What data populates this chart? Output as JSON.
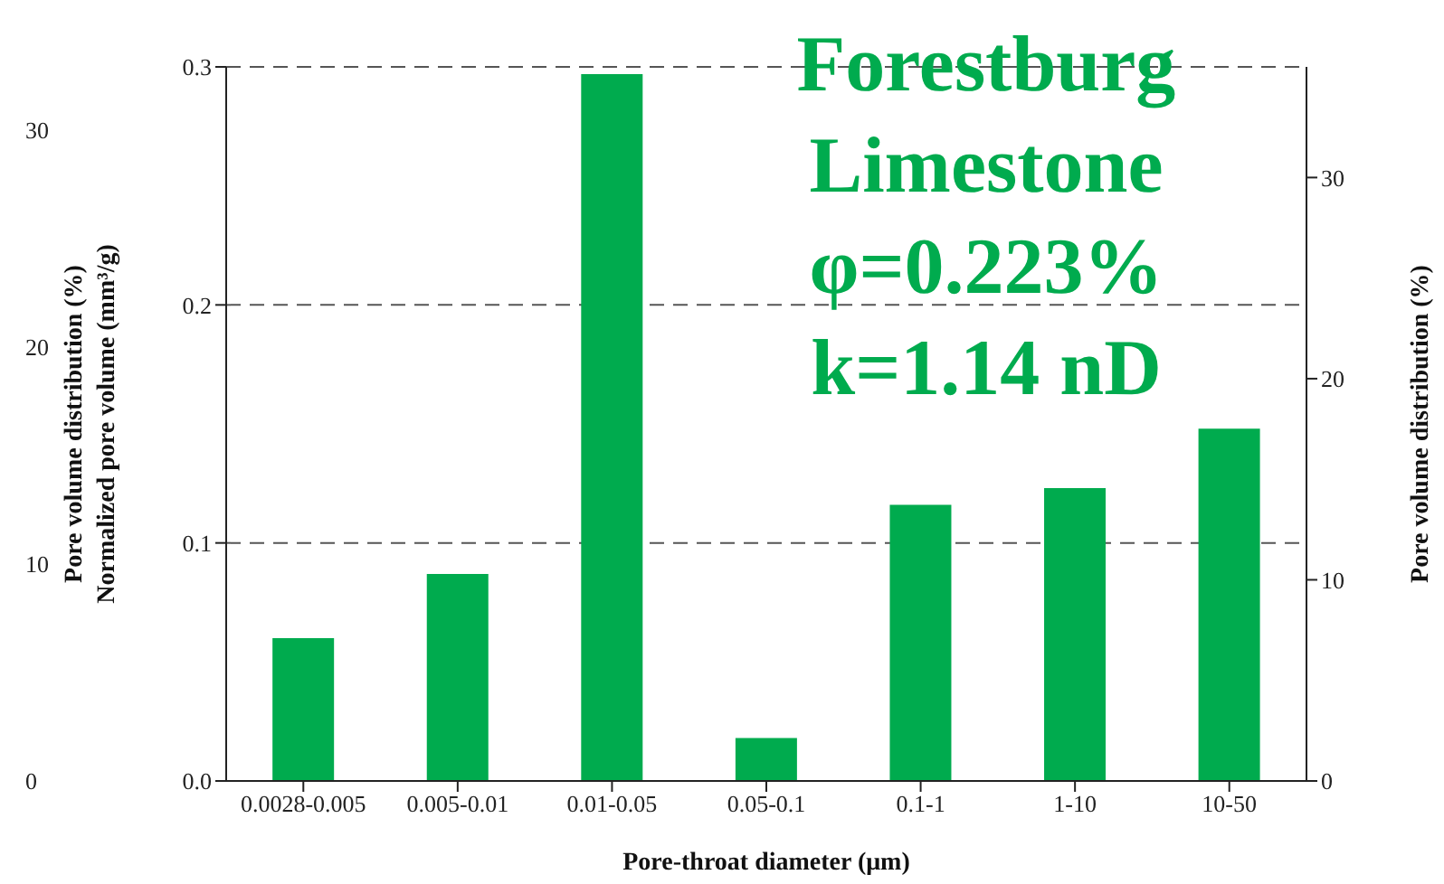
{
  "chart_data": {
    "type": "bar",
    "xlabel": "Pore-throat diameter (μm)",
    "ylabel": "Normalized pore volume (mm³/g)",
    "y2label": "Pore volume distribution (%)",
    "y3label": "Pore volume distribution (%)",
    "categories": [
      "0.0028-0.005",
      "0.005-0.01",
      "0.01-0.05",
      "0.05-0.1",
      "0.1-1",
      "1-10",
      "10-50"
    ],
    "values": [
      0.06,
      0.087,
      0.297,
      0.018,
      0.116,
      0.123,
      0.148
    ],
    "color": "#00ab4e",
    "ylim": [
      0,
      0.3
    ],
    "yticks": [
      {
        "value": 0,
        "label": "0.0"
      },
      0.1,
      0.2,
      0.3
    ],
    "y2lim": [
      0,
      35.5
    ],
    "y2ticks": [
      0,
      10,
      20,
      30
    ],
    "y3lim": [
      0,
      32.9
    ],
    "y3ticks": [
      0,
      10,
      20,
      30
    ],
    "grid": "y",
    "annotations": [
      "Forestburg Limestone",
      "φ=0.223%",
      "k=1.14 nD"
    ]
  }
}
